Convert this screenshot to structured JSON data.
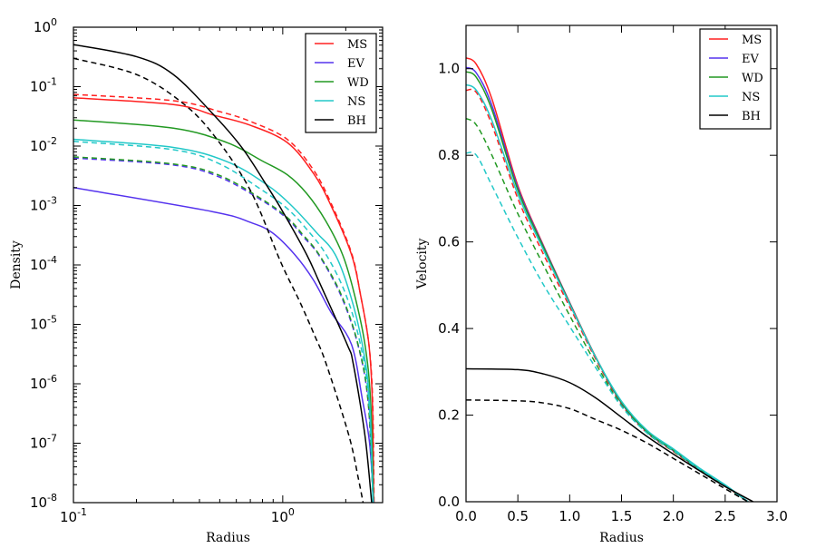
{
  "chart_data": [
    {
      "type": "line",
      "xlabel": "Radius",
      "ylabel": "Density",
      "xscale": "log",
      "yscale": "log",
      "xlim": [
        0.1,
        3.0
      ],
      "ylim": [
        1e-08,
        1
      ],
      "grid": false,
      "xticks": [
        {
          "value": 0.1,
          "base": "10",
          "exp": "-1"
        },
        {
          "value": 1,
          "base": "10",
          "exp": "0"
        }
      ],
      "yticks": [
        {
          "value": 1,
          "base": "10",
          "exp": "0"
        },
        {
          "value": 0.1,
          "base": "10",
          "exp": "-1"
        },
        {
          "value": 0.01,
          "base": "10",
          "exp": "-2"
        },
        {
          "value": 0.001,
          "base": "10",
          "exp": "-3"
        },
        {
          "value": 0.0001,
          "base": "10",
          "exp": "-4"
        },
        {
          "value": 1e-05,
          "base": "10",
          "exp": "-5"
        },
        {
          "value": 1e-06,
          "base": "10",
          "exp": "-6"
        },
        {
          "value": 1e-07,
          "base": "10",
          "exp": "-7"
        },
        {
          "value": 1e-08,
          "base": "10",
          "exp": "-8"
        }
      ],
      "legend": {
        "placement": "top-right",
        "entries": [
          {
            "label": "MS",
            "color": "#ff2020"
          },
          {
            "label": "EV",
            "color": "#5533ee"
          },
          {
            "label": "WD",
            "color": "#229922"
          },
          {
            "label": "NS",
            "color": "#22c8c8"
          },
          {
            "label": "BH",
            "color": "#000000"
          }
        ]
      },
      "series": [
        {
          "name": "MS",
          "color": "#ff2020",
          "linestyle": "solid",
          "x": [
            0.1,
            0.3,
            0.47,
            0.7,
            1.05,
            1.4,
            1.7,
            2.13,
            2.35,
            2.58,
            2.68,
            2.72
          ],
          "y": [
            0.065,
            0.05,
            0.033,
            0.0224,
            0.0115,
            0.0035,
            0.001,
            0.00015,
            3.2e-05,
            4.6e-06,
            5e-07,
            1e-08
          ]
        },
        {
          "color": "#ff2020",
          "linestyle": "dashed",
          "x": [
            0.1,
            0.3,
            0.5,
            0.7,
            1.05,
            1.4,
            1.7,
            2.13,
            2.35,
            2.58,
            2.69,
            2.73
          ],
          "y": [
            0.074,
            0.058,
            0.038,
            0.026,
            0.013,
            0.004,
            0.0011,
            0.00016,
            3.2e-05,
            4.6e-06,
            5e-07,
            1e-08
          ]
        },
        {
          "name": "EV",
          "color": "#5533ee",
          "linestyle": "solid",
          "x": [
            0.1,
            0.46,
            0.7,
            0.89,
            1.14,
            1.4,
            1.7,
            2.13,
            2.4,
            2.6,
            2.72
          ],
          "y": [
            0.002,
            0.00079,
            0.00052,
            0.00035,
            0.00015,
            5.6e-05,
            1.6e-05,
            4.6e-06,
            5.5e-07,
            1e-07,
            1e-08
          ]
        },
        {
          "color": "#5533ee",
          "linestyle": "dashed",
          "x": [
            0.1,
            0.3,
            0.5,
            0.8,
            1.05,
            1.25,
            1.49,
            1.9,
            2.29,
            2.56,
            2.7
          ],
          "y": [
            0.0063,
            0.0048,
            0.003,
            0.0012,
            0.0006,
            0.0003,
            0.000145,
            3e-05,
            4.4e-06,
            4.8e-07,
            1e-08
          ]
        },
        {
          "name": "WD",
          "color": "#229922",
          "linestyle": "solid",
          "x": [
            0.1,
            0.3,
            0.54,
            0.8,
            1.05,
            1.3,
            1.6,
            1.93,
            2.2,
            2.47,
            2.63,
            2.71
          ],
          "y": [
            0.0275,
            0.02,
            0.0115,
            0.0056,
            0.0033,
            0.0016,
            0.00056,
            0.00015,
            3.2e-05,
            4.6e-06,
            5e-07,
            1e-08
          ]
        },
        {
          "color": "#229922",
          "linestyle": "dashed",
          "x": [
            0.1,
            0.3,
            0.5,
            0.8,
            1.05,
            1.25,
            1.49,
            1.9,
            2.29,
            2.56,
            2.7
          ],
          "y": [
            0.0066,
            0.005,
            0.0032,
            0.00126,
            0.00063,
            0.00032,
            0.00015,
            3.2e-05,
            4.6e-06,
            5e-07,
            1e-08
          ]
        },
        {
          "name": "NS",
          "color": "#22c8c8",
          "linestyle": "solid",
          "x": [
            0.1,
            0.3,
            0.54,
            0.83,
            1.1,
            1.45,
            1.78,
            2.1,
            2.4,
            2.6,
            2.7
          ],
          "y": [
            0.013,
            0.0095,
            0.0055,
            0.0023,
            0.001,
            0.00035,
            0.00015,
            3.2e-05,
            4.6e-06,
            5e-07,
            1e-08
          ]
        },
        {
          "color": "#22c8c8",
          "linestyle": "dashed",
          "x": [
            0.1,
            0.3,
            0.5,
            0.8,
            1.05,
            1.3,
            1.61,
            2.0,
            2.35,
            2.58,
            2.7
          ],
          "y": [
            0.012,
            0.0087,
            0.005,
            0.0018,
            0.00089,
            0.0004,
            0.00015,
            3.2e-05,
            4.6e-06,
            5e-07,
            1e-08
          ]
        },
        {
          "name": "BH",
          "color": "#000000",
          "linestyle": "solid",
          "x": [
            0.1,
            0.2,
            0.3,
            0.47,
            0.64,
            0.83,
            1.0,
            1.3,
            1.5,
            2.03,
            2.17,
            2.47,
            2.66
          ],
          "y": [
            0.51,
            0.32,
            0.16,
            0.033,
            0.0093,
            0.0023,
            0.00079,
            0.00015,
            5e-05,
            4.6e-06,
            2.2e-06,
            1.35e-07,
            1e-08
          ]
        },
        {
          "color": "#000000",
          "linestyle": "dashed",
          "x": [
            0.1,
            0.2,
            0.33,
            0.47,
            0.7,
            0.98,
            1.2,
            1.42,
            1.61,
            2.07,
            2.3,
            2.42
          ],
          "y": [
            0.3,
            0.16,
            0.054,
            0.015,
            0.0018,
            0.00011,
            2.5e-05,
            6.5e-06,
            2.2e-06,
            1.35e-07,
            2.5e-08,
            1e-08
          ]
        }
      ]
    },
    {
      "type": "line",
      "xlabel": "Radius",
      "ylabel": "Velocity",
      "xscale": "linear",
      "yscale": "linear",
      "xlim": [
        0.0,
        3.0
      ],
      "ylim": [
        0.0,
        1.1
      ],
      "grid": false,
      "xticks": [
        {
          "value": 0,
          "label": "0.0"
        },
        {
          "value": 0.5,
          "label": "0.5"
        },
        {
          "value": 1,
          "label": "1.0"
        },
        {
          "value": 1.5,
          "label": "1.5"
        },
        {
          "value": 2,
          "label": "2.0"
        },
        {
          "value": 2.5,
          "label": "2.5"
        },
        {
          "value": 3,
          "label": "3.0"
        }
      ],
      "yticks": [
        {
          "value": 0,
          "label": "0.0"
        },
        {
          "value": 0.2,
          "label": "0.2"
        },
        {
          "value": 0.4,
          "label": "0.4"
        },
        {
          "value": 0.6,
          "label": "0.6"
        },
        {
          "value": 0.8,
          "label": "0.8"
        },
        {
          "value": 1.0,
          "label": "1.0"
        }
      ],
      "legend": {
        "placement": "top-right",
        "entries": [
          {
            "label": "MS",
            "color": "#ff2020"
          },
          {
            "label": "EV",
            "color": "#5533ee"
          },
          {
            "label": "WD",
            "color": "#229922"
          },
          {
            "label": "NS",
            "color": "#22c8c8"
          },
          {
            "label": "BH",
            "color": "#000000"
          }
        ]
      },
      "series": [
        {
          "name": "MS",
          "color": "#ff2020",
          "linestyle": "solid",
          "x": [
            0,
            0.1,
            0.25,
            0.5,
            0.75,
            1.0,
            1.25,
            1.5,
            1.75,
            2.0,
            2.25,
            2.5,
            2.72
          ],
          "y": [
            1.025,
            1.01,
            0.93,
            0.73,
            0.59,
            0.46,
            0.335,
            0.228,
            0.16,
            0.118,
            0.075,
            0.038,
            0.0
          ]
        },
        {
          "color": "#ff2020",
          "linestyle": "dashed",
          "x": [
            0,
            0.1,
            0.25,
            0.5,
            0.75,
            1.0,
            1.25,
            1.5,
            1.75,
            2.0,
            2.25,
            2.5,
            2.72
          ],
          "y": [
            0.95,
            0.945,
            0.87,
            0.7,
            0.57,
            0.45,
            0.33,
            0.225,
            0.158,
            0.116,
            0.073,
            0.036,
            0.0
          ]
        },
        {
          "name": "EV",
          "color": "#5533ee",
          "linestyle": "solid",
          "x": [
            0,
            0.1,
            0.25,
            0.5,
            0.75,
            1.0,
            1.25,
            1.5,
            1.75,
            2.0,
            2.25,
            2.5,
            2.72
          ],
          "y": [
            1.003,
            0.99,
            0.915,
            0.725,
            0.588,
            0.459,
            0.334,
            0.228,
            0.16,
            0.118,
            0.075,
            0.038,
            0.0
          ]
        },
        {
          "name": "WD",
          "color": "#229922",
          "linestyle": "solid",
          "x": [
            0,
            0.1,
            0.25,
            0.5,
            0.75,
            1.0,
            1.25,
            1.5,
            1.75,
            2.0,
            2.25,
            2.5,
            2.72
          ],
          "y": [
            0.993,
            0.98,
            0.905,
            0.72,
            0.586,
            0.458,
            0.334,
            0.229,
            0.161,
            0.119,
            0.076,
            0.038,
            0.0
          ]
        },
        {
          "color": "#229922",
          "linestyle": "dashed",
          "x": [
            0,
            0.1,
            0.25,
            0.5,
            0.75,
            1.0,
            1.25,
            1.5,
            1.75,
            2.0,
            2.25,
            2.5,
            2.72
          ],
          "y": [
            0.885,
            0.87,
            0.8,
            0.665,
            0.545,
            0.43,
            0.32,
            0.222,
            0.158,
            0.117,
            0.074,
            0.036,
            0.0
          ]
        },
        {
          "name": "NS",
          "color": "#22c8c8",
          "linestyle": "solid",
          "x": [
            0,
            0.1,
            0.25,
            0.5,
            0.75,
            1.0,
            1.25,
            1.5,
            1.75,
            2.0,
            2.25,
            2.5,
            2.72
          ],
          "y": [
            0.963,
            0.95,
            0.88,
            0.71,
            0.58,
            0.456,
            0.334,
            0.232,
            0.164,
            0.122,
            0.078,
            0.039,
            0.0
          ]
        },
        {
          "color": "#22c8c8",
          "linestyle": "dashed",
          "x": [
            0,
            0.1,
            0.25,
            0.5,
            0.75,
            1.0,
            1.25,
            1.5,
            1.75,
            2.0,
            2.25,
            2.5,
            2.72
          ],
          "y": [
            0.805,
            0.8,
            0.73,
            0.61,
            0.5,
            0.405,
            0.31,
            0.22,
            0.158,
            0.118,
            0.075,
            0.037,
            0.0
          ]
        },
        {
          "name": "BH",
          "color": "#000000",
          "linestyle": "solid",
          "x": [
            0,
            0.5,
            0.75,
            1.0,
            1.25,
            1.5,
            1.75,
            2.0,
            2.25,
            2.5,
            2.77
          ],
          "y": [
            0.307,
            0.305,
            0.295,
            0.275,
            0.24,
            0.195,
            0.15,
            0.11,
            0.072,
            0.035,
            0.0
          ]
        },
        {
          "color": "#000000",
          "linestyle": "dashed",
          "x": [
            0,
            0.5,
            0.75,
            1.0,
            1.25,
            1.5,
            1.75,
            2.0,
            2.25,
            2.5,
            2.72
          ],
          "y": [
            0.235,
            0.233,
            0.228,
            0.215,
            0.19,
            0.165,
            0.135,
            0.1,
            0.065,
            0.03,
            0.0
          ]
        }
      ]
    }
  ]
}
